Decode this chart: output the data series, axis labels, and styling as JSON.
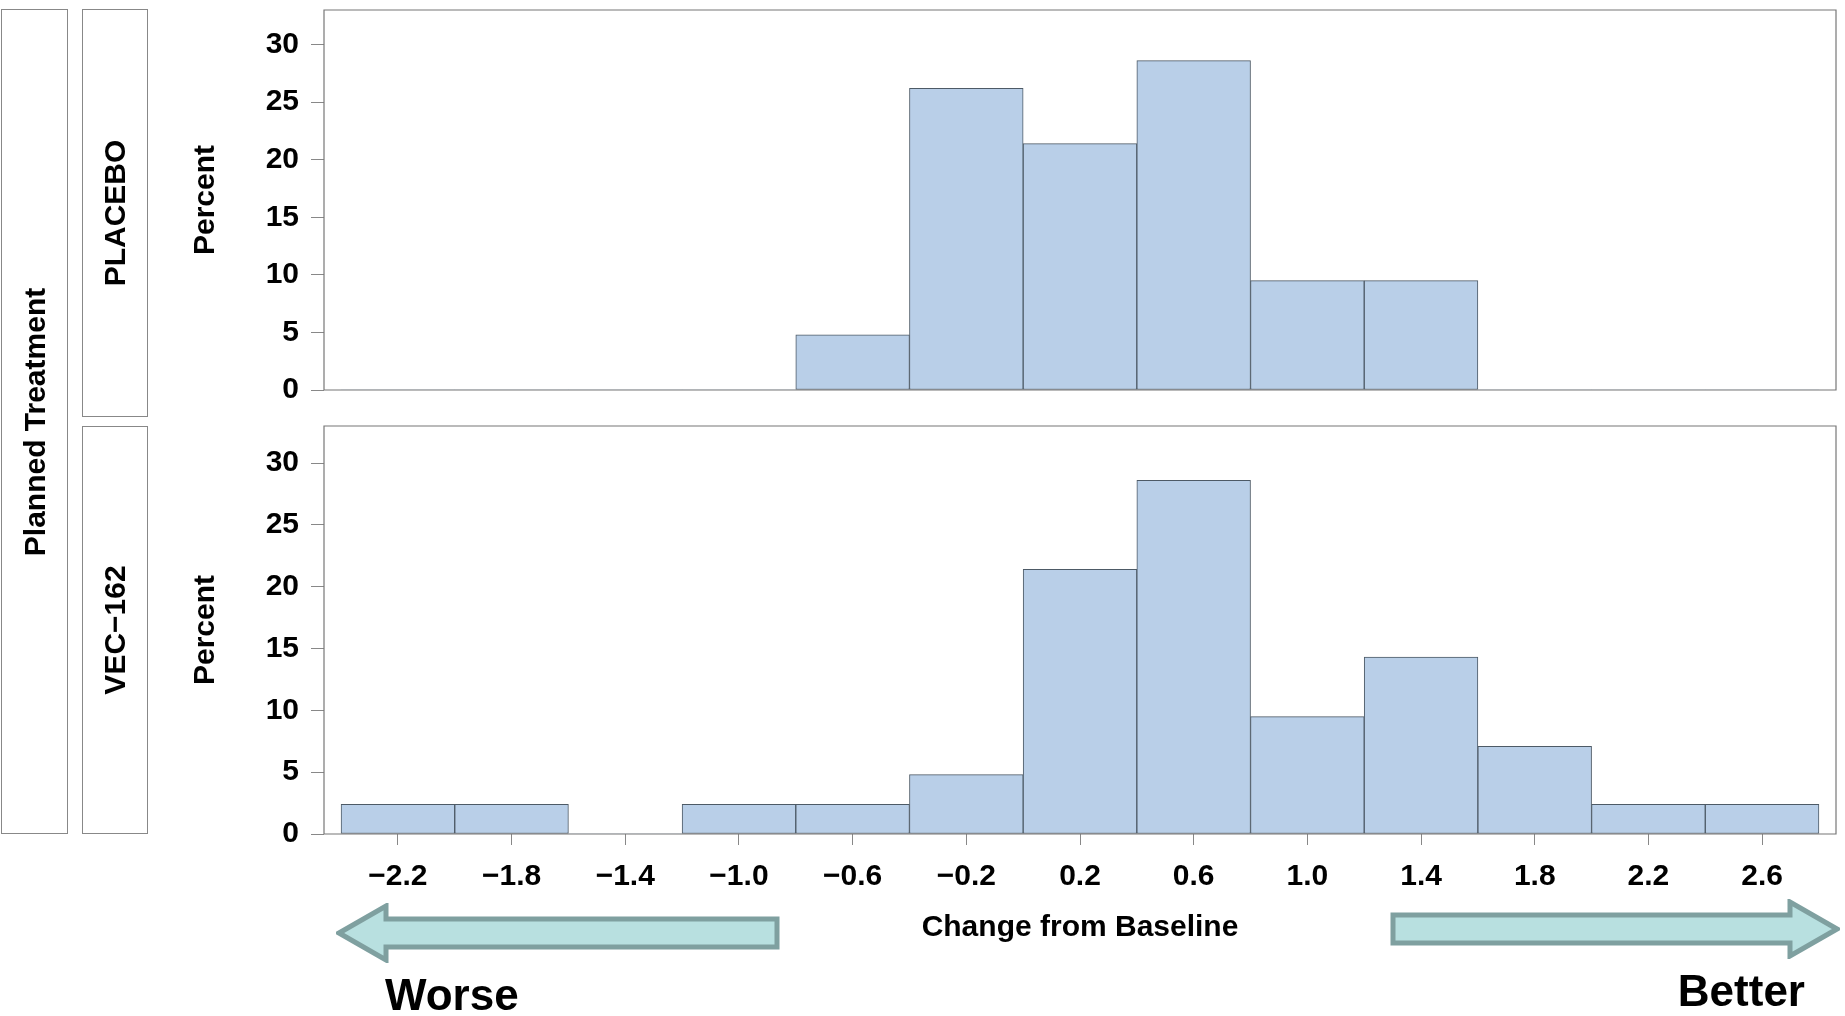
{
  "chart_data": [
    {
      "type": "histogram",
      "title": "PLACEBO",
      "ylabel": "Percent",
      "annotations": [
        "Planned Treatment"
      ],
      "bins": [
        -2.4,
        -2.0,
        -1.6,
        -1.2,
        -0.8,
        -0.4,
        0,
        0.4,
        0.8,
        1.2,
        1.6,
        2.0,
        2.4,
        2.8
      ],
      "values": [
        0,
        0,
        0,
        0,
        4.8,
        26.2,
        21.4,
        28.6,
        9.5,
        9.5,
        0,
        0,
        0
      ],
      "color": "#b9cfe8",
      "xlim": [
        -2.46,
        2.86
      ],
      "ylim": [
        0,
        33
      ],
      "yticks": [
        0,
        5,
        10,
        15,
        20,
        25,
        30
      ],
      "tick_labels": "y"
    },
    {
      "type": "histogram",
      "title": "VEC−162",
      "ylabel": "Percent",
      "xlabel": "Change from Baseline",
      "annotations": [
        "Worse",
        "Better"
      ],
      "bins": [
        -2.4,
        -2.0,
        -1.6,
        -1.2,
        -0.8,
        -0.4,
        0,
        0.4,
        0.8,
        1.2,
        1.6,
        2.0,
        2.4,
        2.8
      ],
      "values": [
        2.4,
        2.4,
        0,
        2.4,
        2.4,
        4.8,
        21.4,
        28.6,
        9.5,
        14.3,
        7.1,
        2.4,
        2.4
      ],
      "color": "#b9cfe8",
      "xlim": [
        -2.46,
        2.86
      ],
      "ylim": [
        0,
        33
      ],
      "yticks": [
        0,
        5,
        10,
        15,
        20,
        25,
        30
      ],
      "xticks": [
        {
          "value": -2.2,
          "label": "−2.2"
        },
        {
          "value": -1.8,
          "label": "−1.8"
        },
        {
          "value": -1.4,
          "label": "−1.4"
        },
        {
          "value": -1.0,
          "label": "−1.0"
        },
        {
          "value": -0.6,
          "label": "−0.6"
        },
        {
          "value": -0.2,
          "label": "−0.2"
        },
        {
          "value": 0.2,
          "label": "0.2"
        },
        {
          "value": 0.6,
          "label": "0.6"
        },
        {
          "value": 1.0,
          "label": "1.0"
        },
        {
          "value": 1.4,
          "label": "1.4"
        },
        {
          "value": 1.8,
          "label": "1.8"
        },
        {
          "value": 2.2,
          "label": "2.2"
        },
        {
          "value": 2.6,
          "label": "2.6"
        }
      ]
    }
  ]
}
